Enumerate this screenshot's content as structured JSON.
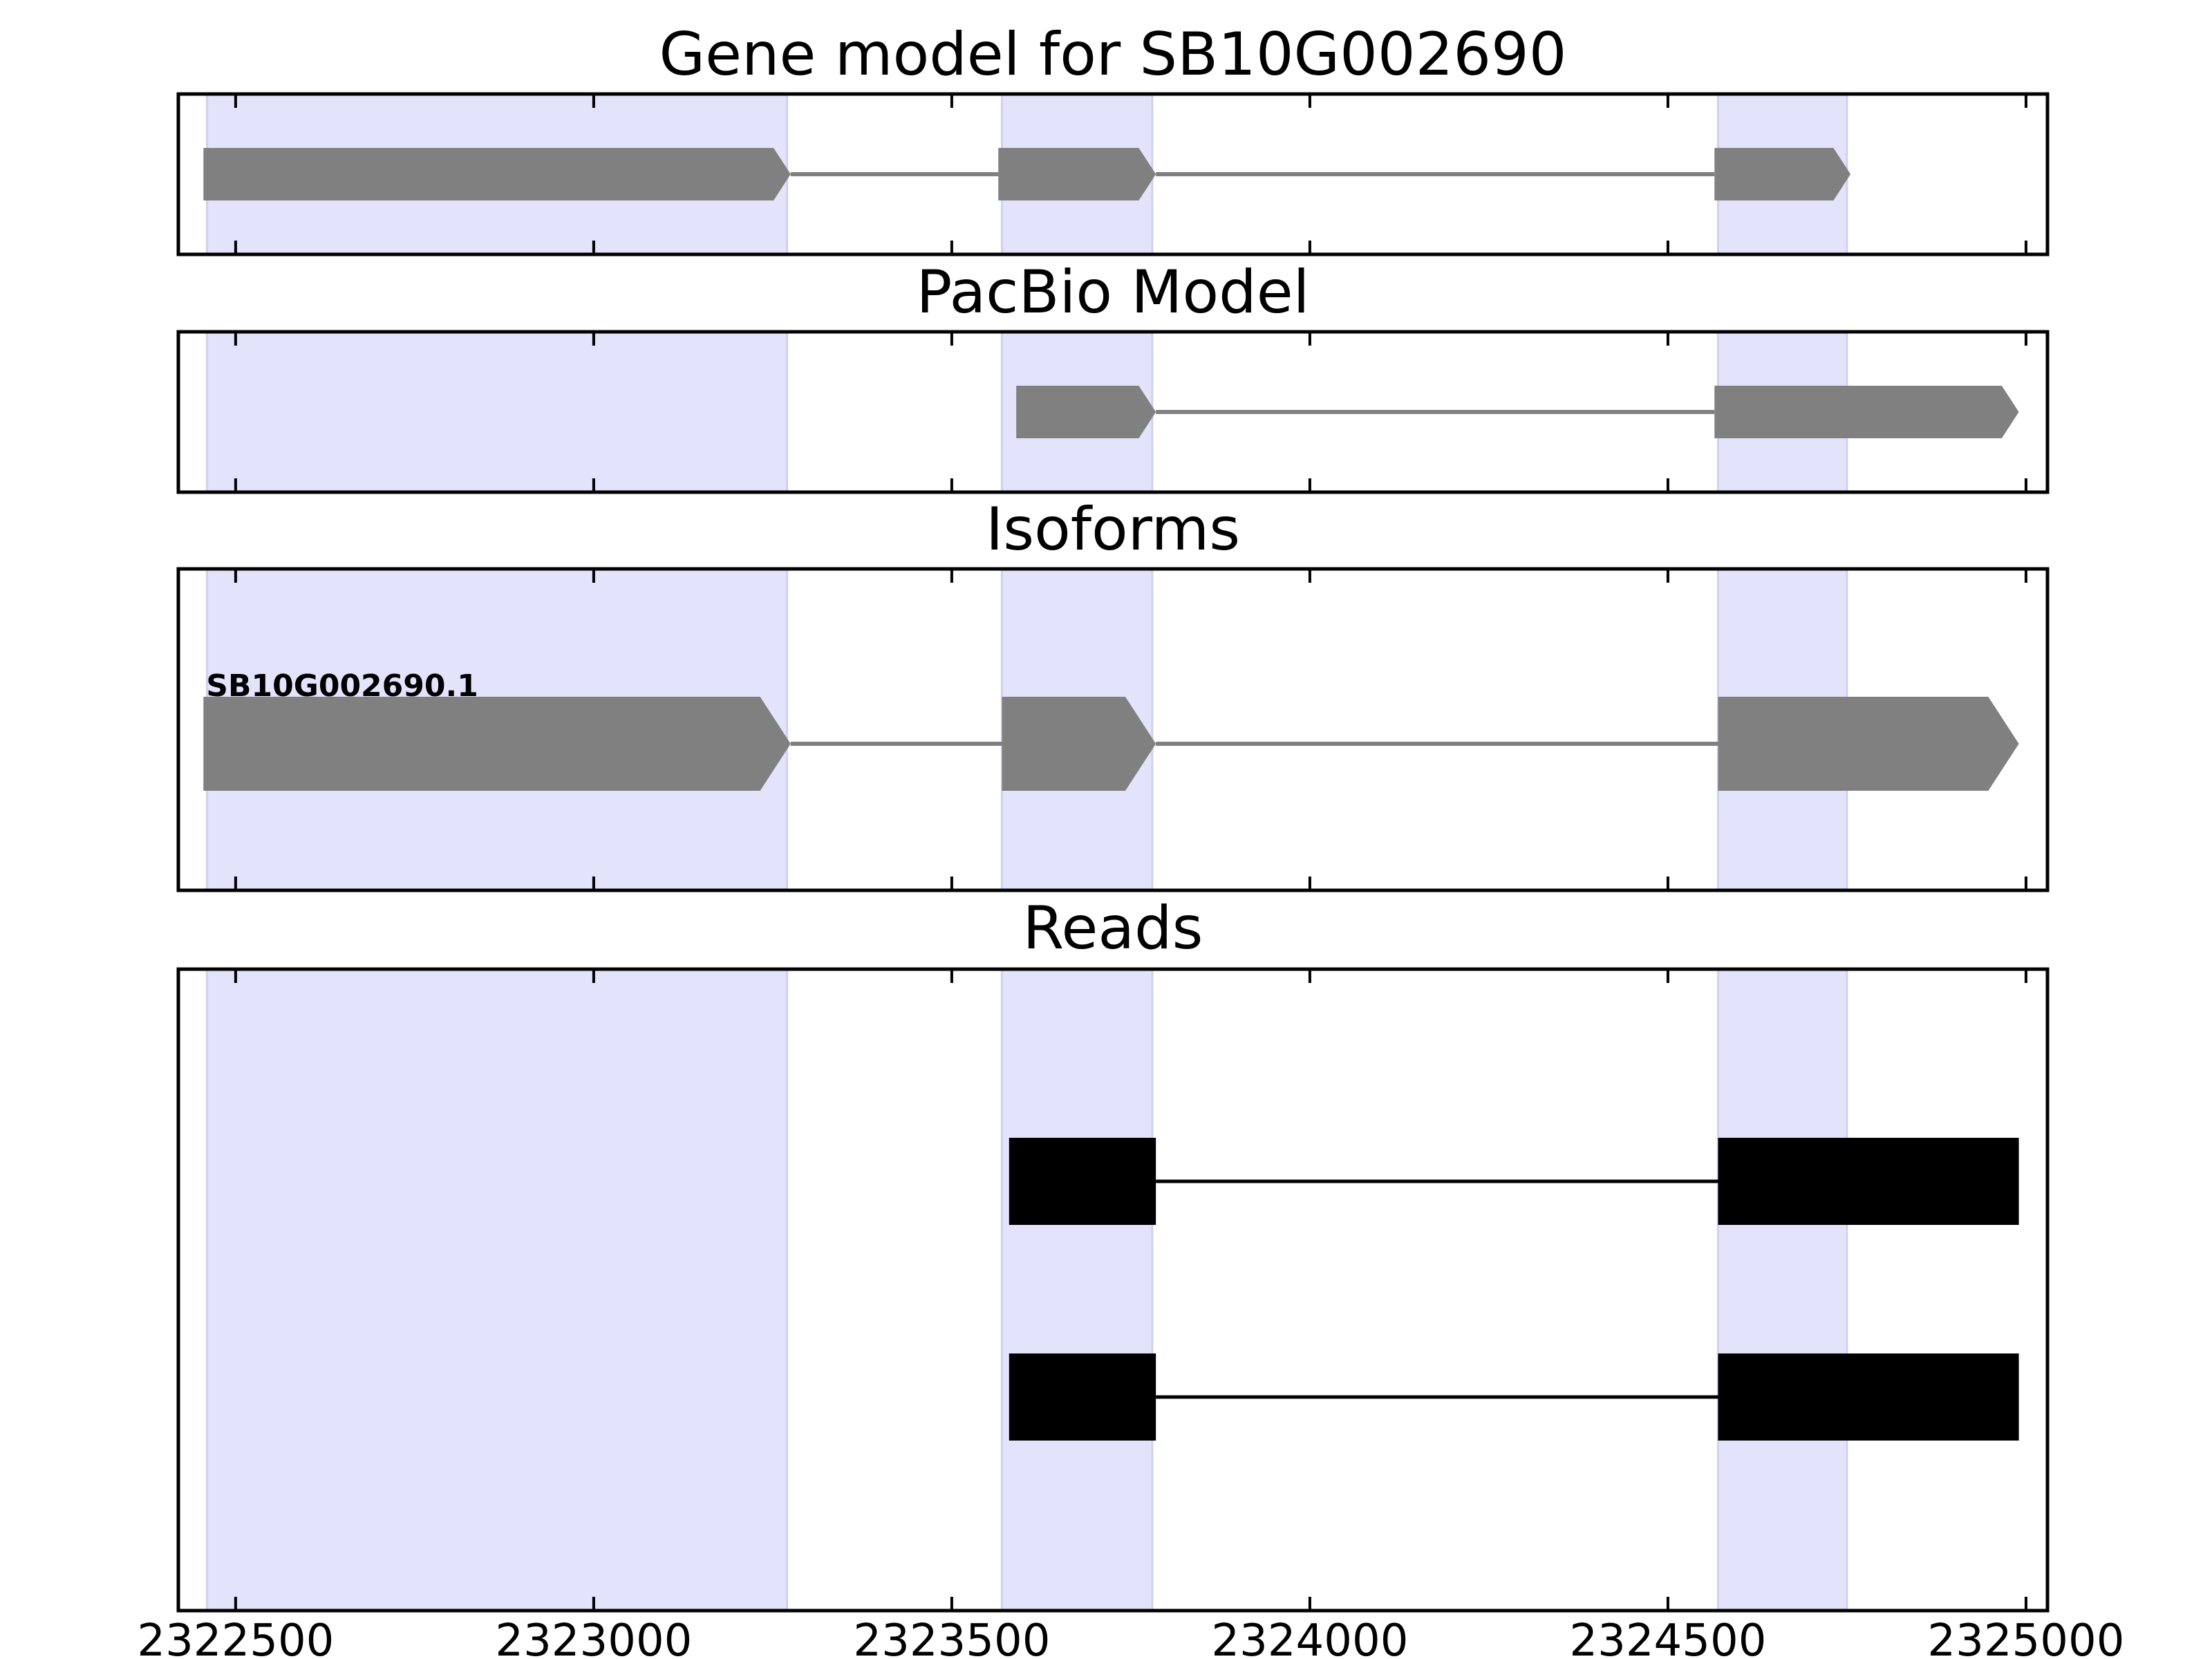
{
  "chart_data": {
    "type": "gene-track",
    "xlim": [
      2322420,
      2325030
    ],
    "xticks": [
      2322500,
      2323000,
      2323500,
      2324000,
      2324500,
      2325000
    ],
    "colors": {
      "highlight": "#e3e3fc",
      "highlight_edge": "#d0d0f0",
      "model": "#808080",
      "read": "#000000",
      "frame": "#000000"
    },
    "highlight_regions": [
      [
        2322460,
        2323270
      ],
      [
        2323570,
        2323780
      ],
      [
        2324570,
        2324750
      ]
    ],
    "panels": [
      {
        "title": "Gene model for SB10G002690",
        "style": "arrow",
        "color": "#808080",
        "tracks": [
          {
            "label": "",
            "strand": "+",
            "exons": [
              [
                2322455,
                2323275
              ],
              [
                2323565,
                2323785
              ],
              [
                2324565,
                2324755
              ]
            ]
          }
        ]
      },
      {
        "title": "PacBio Model",
        "style": "arrow",
        "color": "#808080",
        "tracks": [
          {
            "label": "",
            "strand": "+",
            "exons": [
              [
                2323590,
                2323785
              ],
              [
                2324565,
                2324990
              ]
            ]
          }
        ]
      },
      {
        "title": "Isoforms",
        "style": "arrow",
        "color": "#808080",
        "tracks": [
          {
            "label": "SB10G002690.1",
            "strand": "+",
            "exons": [
              [
                2322455,
                2323275
              ],
              [
                2323570,
                2323785
              ],
              [
                2324570,
                2324990
              ]
            ]
          }
        ]
      },
      {
        "title": "Reads",
        "style": "box",
        "color": "#000000",
        "tracks": [
          {
            "label": "",
            "exons": [
              [
                2323580,
                2323785
              ],
              [
                2324570,
                2324990
              ]
            ]
          },
          {
            "label": "",
            "exons": [
              [
                2323580,
                2323785
              ],
              [
                2324570,
                2324990
              ]
            ]
          }
        ]
      }
    ]
  }
}
